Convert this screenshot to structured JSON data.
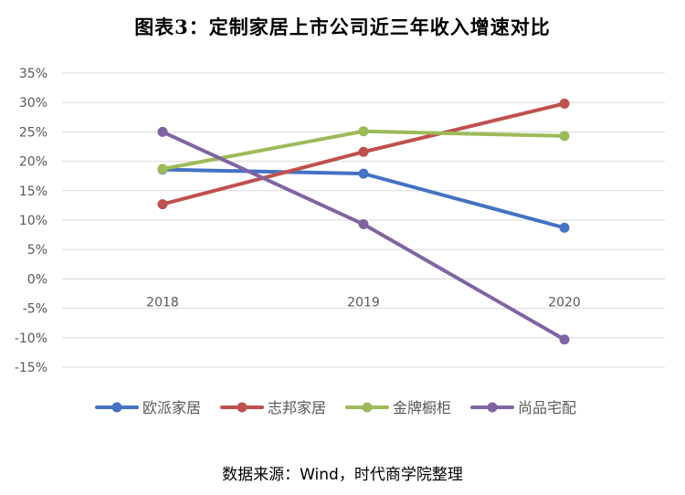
{
  "title": "图表3：定制家居上市公司近三年收入增速对比",
  "source": "数据来源：Wind，时代商学院整理",
  "chart_data": {
    "type": "line",
    "x": [
      "2018",
      "2019",
      "2020"
    ],
    "ylim": [
      -15,
      35
    ],
    "ytick_step": 5,
    "ytick_suffix": "%",
    "grid": true,
    "legend_position": "bottom",
    "series": [
      {
        "name": "欧派家居",
        "color": "#4472C4",
        "values": [
          18.6,
          17.9,
          8.7
        ]
      },
      {
        "name": "志邦家居",
        "color": "#C0504D",
        "values": [
          12.7,
          21.6,
          29.8
        ]
      },
      {
        "name": "金牌橱柜",
        "color": "#9BBB59",
        "values": [
          18.7,
          25.1,
          24.3
        ]
      },
      {
        "name": "尚品宅配",
        "color": "#8064A2",
        "values": [
          25.0,
          9.3,
          -10.3
        ]
      }
    ]
  }
}
